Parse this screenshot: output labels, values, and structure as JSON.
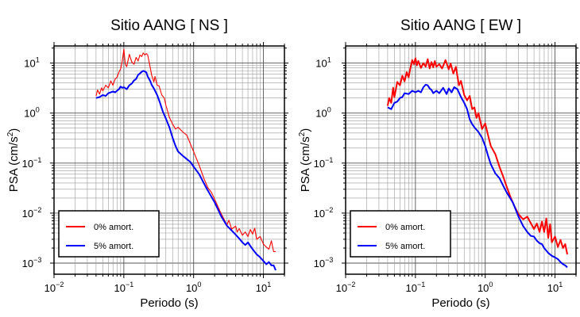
{
  "chart_data": [
    {
      "type": "line",
      "title": "Sitio AANG [ NS ]",
      "xlabel": "Periodo (s)",
      "ylabel_prefix": "PSA (cm/s",
      "ylabel_sup": "2",
      "ylabel_suffix": ")",
      "x_scale": "log",
      "y_scale": "log",
      "xlim": [
        0.01,
        20
      ],
      "ylim": [
        0.0006,
        22
      ],
      "x_ticks": [
        {
          "value": 0.01,
          "base": "10",
          "exp": "−2"
        },
        {
          "value": 0.1,
          "base": "10",
          "exp": "−1"
        },
        {
          "value": 1,
          "base": "10",
          "exp": "0"
        },
        {
          "value": 10,
          "base": "10",
          "exp": "1"
        }
      ],
      "y_ticks": [
        {
          "value": 0.001,
          "base": "10",
          "exp": "−3"
        },
        {
          "value": 0.01,
          "base": "10",
          "exp": "−2"
        },
        {
          "value": 0.1,
          "base": "10",
          "exp": "−1"
        },
        {
          "value": 1,
          "base": "10",
          "exp": "0"
        },
        {
          "value": 10,
          "base": "10",
          "exp": "1"
        }
      ],
      "grid": true,
      "legend_position": "bottom-left",
      "series": [
        {
          "name": "0% amort.",
          "color": "#ff0000",
          "x": [
            0.04,
            0.042,
            0.045,
            0.048,
            0.05,
            0.055,
            0.06,
            0.065,
            0.07,
            0.075,
            0.08,
            0.085,
            0.09,
            0.095,
            0.1,
            0.105,
            0.11,
            0.12,
            0.13,
            0.14,
            0.15,
            0.16,
            0.17,
            0.18,
            0.19,
            0.2,
            0.21,
            0.22,
            0.24,
            0.25,
            0.27,
            0.28,
            0.3,
            0.32,
            0.35,
            0.38,
            0.4,
            0.45,
            0.5,
            0.55,
            0.6,
            0.7,
            0.8,
            0.9,
            1.0,
            1.2,
            1.4,
            1.6,
            1.8,
            2.0,
            2.5,
            3.0,
            3.2,
            3.5,
            4.0,
            4.2,
            4.5,
            5.0,
            5.5,
            6.0,
            6.5,
            7.0,
            7.5,
            8.0,
            9.0,
            10.0,
            11.0,
            12.0,
            13.0,
            14.0,
            15.0
          ],
          "y": [
            2.2,
            2.9,
            2.4,
            3.2,
            2.8,
            3.6,
            3.2,
            4.4,
            3.6,
            4.8,
            5.2,
            6.6,
            7.6,
            11,
            19,
            9.5,
            8.5,
            15,
            10.5,
            9.5,
            13,
            11,
            14.5,
            13.5,
            16,
            14.5,
            15.5,
            14.5,
            7.8,
            5.8,
            4.2,
            5.4,
            3.6,
            3.5,
            2.3,
            2.0,
            1.45,
            0.82,
            0.6,
            0.48,
            0.52,
            0.42,
            0.36,
            0.24,
            0.17,
            0.09,
            0.05,
            0.032,
            0.026,
            0.019,
            0.0095,
            0.0058,
            0.0072,
            0.0048,
            0.0055,
            0.0042,
            0.0049,
            0.0036,
            0.0042,
            0.0034,
            0.0047,
            0.0038,
            0.005,
            0.003,
            0.0034,
            0.0024,
            0.0021,
            0.0019,
            0.0028,
            0.0017,
            0.0017
          ]
        },
        {
          "name": "5% amort.",
          "color": "#0000ff",
          "x": [
            0.04,
            0.045,
            0.05,
            0.055,
            0.06,
            0.065,
            0.07,
            0.075,
            0.08,
            0.085,
            0.09,
            0.095,
            0.1,
            0.11,
            0.12,
            0.13,
            0.14,
            0.15,
            0.16,
            0.17,
            0.18,
            0.19,
            0.2,
            0.21,
            0.22,
            0.24,
            0.25,
            0.27,
            0.3,
            0.33,
            0.36,
            0.4,
            0.45,
            0.5,
            0.55,
            0.6,
            0.7,
            0.8,
            0.9,
            1.0,
            1.2,
            1.5,
            2.0,
            2.5,
            3.0,
            3.5,
            4.0,
            4.5,
            5.0,
            5.5,
            6.0,
            6.5,
            7.0,
            8.0,
            9.0,
            10.0,
            11.0,
            12.0,
            13.0,
            14.0,
            15.0
          ],
          "y": [
            2.0,
            2.1,
            2.3,
            2.2,
            2.5,
            2.6,
            2.7,
            2.6,
            2.8,
            3.0,
            3.4,
            3.2,
            3.3,
            3.0,
            3.6,
            3.9,
            4.5,
            4.8,
            5.8,
            6.2,
            6.7,
            7.0,
            6.8,
            6.5,
            5.4,
            4.3,
            3.7,
            3.1,
            2.3,
            1.6,
            1.1,
            0.78,
            0.52,
            0.32,
            0.22,
            0.17,
            0.14,
            0.12,
            0.105,
            0.085,
            0.06,
            0.033,
            0.0165,
            0.0085,
            0.0056,
            0.0045,
            0.0037,
            0.0031,
            0.0026,
            0.0023,
            0.0026,
            0.0022,
            0.0019,
            0.0015,
            0.0013,
            0.0011,
            0.00095,
            0.00105,
            0.0009,
            0.0009,
            0.00072
          ]
        }
      ]
    },
    {
      "type": "line",
      "title": "Sitio AANG [ EW ]",
      "xlabel": "Periodo (s)",
      "ylabel_prefix": "PSA (cm/s",
      "ylabel_sup": "2",
      "ylabel_suffix": ")",
      "x_scale": "log",
      "y_scale": "log",
      "xlim": [
        0.01,
        20
      ],
      "ylim": [
        0.0006,
        22
      ],
      "x_ticks": [
        {
          "value": 0.01,
          "base": "10",
          "exp": "−2"
        },
        {
          "value": 0.1,
          "base": "10",
          "exp": "−1"
        },
        {
          "value": 1,
          "base": "10",
          "exp": "0"
        },
        {
          "value": 10,
          "base": "10",
          "exp": "1"
        }
      ],
      "y_ticks": [
        {
          "value": 0.001,
          "base": "10",
          "exp": "−3"
        },
        {
          "value": 0.01,
          "base": "10",
          "exp": "−2"
        },
        {
          "value": 0.1,
          "base": "10",
          "exp": "−1"
        },
        {
          "value": 1,
          "base": "10",
          "exp": "0"
        },
        {
          "value": 10,
          "base": "10",
          "exp": "1"
        }
      ],
      "grid": true,
      "legend_position": "bottom-left",
      "series": [
        {
          "name": "0% amort.",
          "color": "#ff0000",
          "x": [
            0.04,
            0.042,
            0.045,
            0.048,
            0.05,
            0.055,
            0.06,
            0.065,
            0.07,
            0.075,
            0.08,
            0.085,
            0.09,
            0.095,
            0.1,
            0.105,
            0.11,
            0.12,
            0.13,
            0.14,
            0.15,
            0.16,
            0.17,
            0.18,
            0.19,
            0.2,
            0.22,
            0.24,
            0.25,
            0.27,
            0.3,
            0.32,
            0.35,
            0.38,
            0.4,
            0.42,
            0.45,
            0.5,
            0.55,
            0.6,
            0.65,
            0.7,
            0.75,
            0.8,
            0.9,
            1.0,
            1.1,
            1.2,
            1.4,
            1.6,
            1.8,
            2.0,
            2.3,
            2.6,
            3.0,
            3.5,
            4.0,
            4.5,
            5.0,
            5.5,
            6.0,
            6.5,
            7.0,
            7.5,
            8.0,
            8.5,
            9.0,
            10.0,
            11.0,
            12.0,
            13.0,
            14.0,
            15.0
          ],
          "y": [
            1.4,
            2.0,
            1.6,
            3.2,
            2.1,
            4.2,
            3.6,
            5.6,
            4.3,
            6.6,
            5.2,
            8.2,
            11.5,
            9.5,
            12.5,
            9.0,
            11.0,
            8.0,
            10.0,
            8.5,
            12.0,
            7.8,
            10.5,
            8.2,
            11.0,
            8.5,
            9.5,
            7.8,
            8.8,
            11.5,
            7.5,
            9.8,
            6.2,
            8.4,
            5.5,
            3.6,
            4.4,
            2.3,
            1.8,
            2.2,
            1.2,
            1.3,
            0.8,
            1.0,
            0.48,
            0.62,
            0.36,
            0.22,
            0.15,
            0.085,
            0.055,
            0.036,
            0.021,
            0.014,
            0.0095,
            0.0075,
            0.0085,
            0.0063,
            0.0048,
            0.0062,
            0.0042,
            0.0068,
            0.0042,
            0.0078,
            0.0032,
            0.006,
            0.0026,
            0.0034,
            0.0021,
            0.0029,
            0.002,
            0.0024,
            0.0015
          ]
        },
        {
          "name": "5% amort.",
          "color": "#0000ff",
          "x": [
            0.04,
            0.045,
            0.05,
            0.055,
            0.06,
            0.065,
            0.07,
            0.08,
            0.09,
            0.1,
            0.11,
            0.12,
            0.13,
            0.14,
            0.15,
            0.16,
            0.17,
            0.18,
            0.2,
            0.22,
            0.25,
            0.28,
            0.3,
            0.33,
            0.36,
            0.4,
            0.45,
            0.5,
            0.55,
            0.6,
            0.65,
            0.7,
            0.8,
            0.9,
            1.0,
            1.1,
            1.2,
            1.4,
            1.6,
            1.8,
            2.0,
            2.5,
            3.0,
            3.5,
            4.0,
            4.5,
            5.0,
            5.5,
            6.0,
            6.5,
            7.0,
            8.0,
            9.0,
            10.0,
            11.0,
            12.0,
            13.0,
            14.0,
            15.0
          ],
          "y": [
            1.3,
            1.2,
            1.6,
            1.7,
            2.0,
            2.1,
            2.5,
            2.4,
            2.8,
            2.6,
            2.8,
            2.6,
            3.3,
            3.7,
            3.6,
            3.1,
            2.9,
            2.5,
            2.8,
            2.5,
            3.2,
            2.4,
            3.1,
            2.6,
            3.3,
            3.0,
            2.1,
            1.6,
            1.2,
            0.75,
            0.6,
            0.52,
            0.42,
            0.32,
            0.22,
            0.14,
            0.095,
            0.062,
            0.05,
            0.036,
            0.027,
            0.016,
            0.0085,
            0.0055,
            0.0042,
            0.0035,
            0.0034,
            0.0028,
            0.0025,
            0.0024,
            0.002,
            0.0016,
            0.0014,
            0.0013,
            0.0012,
            0.00105,
            0.00095,
            0.0009,
            0.00082
          ]
        }
      ]
    }
  ]
}
